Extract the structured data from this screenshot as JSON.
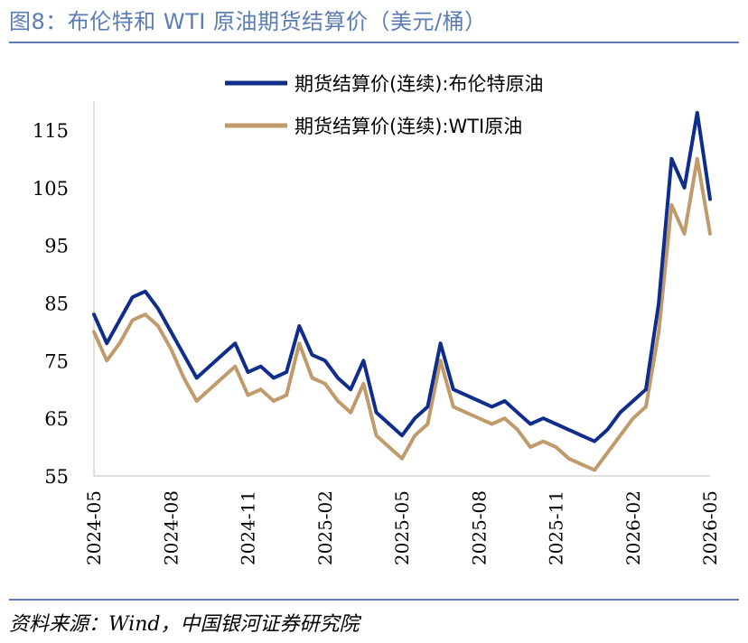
{
  "title": "图8：布伦特和 WTI 原油期货结算价（美元/桶）",
  "source": "资料来源：Wind，中国银河证券研究院",
  "chart_data": {
    "type": "line",
    "ylim": [
      55,
      120
    ],
    "yticks": [
      "55",
      "65",
      "75",
      "85",
      "95",
      "105",
      "115"
    ],
    "xticks": [
      "2024-05",
      "2024-08",
      "2024-11",
      "2025-02",
      "2025-05",
      "2025-08",
      "2025-11",
      "2026-02",
      "2026-05"
    ],
    "x": [
      "2024-05",
      "2024-05",
      "2024-06",
      "2024-06",
      "2024-07",
      "2024-07",
      "2024-08",
      "2024-08",
      "2024-09",
      "2024-09",
      "2024-10",
      "2024-10",
      "2024-11",
      "2024-11",
      "2024-12",
      "2024-12",
      "2025-01",
      "2025-01",
      "2025-02",
      "2025-02",
      "2025-03",
      "2025-03",
      "2025-04",
      "2025-04",
      "2025-05",
      "2025-05",
      "2025-06",
      "2025-06",
      "2025-07",
      "2025-07",
      "2025-08",
      "2025-08",
      "2025-09",
      "2025-09",
      "2025-10",
      "2025-10",
      "2025-11",
      "2025-11",
      "2025-12",
      "2025-12",
      "2026-01",
      "2026-01",
      "2026-02",
      "2026-02",
      "2026-03",
      "2026-03",
      "2026-04",
      "2026-04",
      "2026-05"
    ],
    "legend_position": "top",
    "grid": false,
    "series": [
      {
        "name": "期货结算价(连续):布伦特原油",
        "color": "#0F2D8A",
        "values": [
          83,
          78,
          82,
          86,
          87,
          84,
          80,
          76,
          72,
          74,
          76,
          78,
          73,
          74,
          72,
          73,
          81,
          76,
          75,
          72,
          70,
          75,
          66,
          64,
          62,
          65,
          67,
          78,
          70,
          69,
          68,
          67,
          68,
          66,
          64,
          65,
          64,
          63,
          62,
          61,
          63,
          66,
          68,
          70,
          85,
          110,
          105,
          118,
          103
        ]
      },
      {
        "name": "期货结算价(连续):WTI原油",
        "color": "#C19A6B",
        "values": [
          80,
          75,
          78,
          82,
          83,
          81,
          77,
          72,
          68,
          70,
          72,
          74,
          69,
          70,
          68,
          69,
          78,
          72,
          71,
          68,
          66,
          71,
          62,
          60,
          58,
          62,
          64,
          75,
          67,
          66,
          65,
          64,
          65,
          63,
          60,
          61,
          60,
          58,
          57,
          56,
          59,
          62,
          65,
          67,
          80,
          102,
          97,
          110,
          97
        ]
      }
    ]
  }
}
